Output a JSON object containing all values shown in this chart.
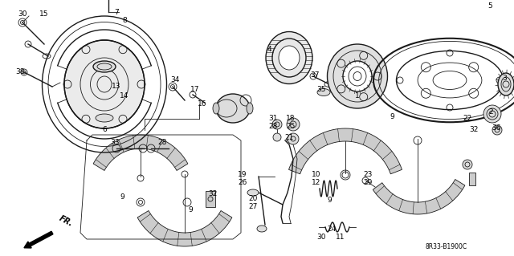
{
  "bg_color": "#ffffff",
  "line_color": "#1a1a1a",
  "text_color": "#000000",
  "diagram_code": "8R33-B1900C",
  "fig_width": 6.4,
  "fig_height": 3.19,
  "font_size": 6.0
}
